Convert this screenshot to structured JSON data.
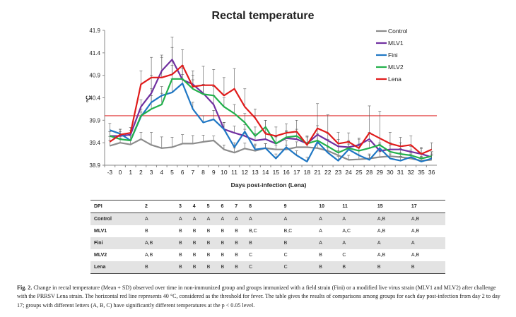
{
  "chart_data": {
    "type": "line",
    "title": "Rectal temperature",
    "xlabel": "Days post-infection (Lena)",
    "ylabel": "°C",
    "ylim": [
      38.9,
      41.9
    ],
    "yticks": [
      "38.9",
      "39.4",
      "39.9",
      "40.4",
      "40.9",
      "41.4",
      "41.9"
    ],
    "x_tick_labels": [
      "-3",
      "0",
      "1",
      "2",
      "3",
      "4",
      "5",
      "6",
      "7",
      "8",
      "9",
      "10",
      "11",
      "12",
      "13",
      "14",
      "15",
      "16",
      "17",
      "18",
      "21",
      "22",
      "23",
      "24",
      "25",
      "28",
      "29",
      "30",
      "31",
      "32",
      "35",
      "36"
    ],
    "threshold": 40.0,
    "series": [
      {
        "name": "Control",
        "color": "#8c8c8c",
        "values": [
          39.33,
          39.4,
          39.36,
          39.48,
          39.35,
          39.28,
          39.3,
          39.38,
          39.38,
          39.42,
          39.45,
          39.25,
          39.18,
          39.27,
          39.22,
          39.28,
          39.25,
          39.25,
          39.3,
          39.3,
          39.28,
          39.22,
          39.12,
          39.02,
          39.03,
          39.05,
          39.08,
          39.1,
          39.08,
          39.05,
          39.0,
          39.02
        ],
        "errors": [
          0.12,
          0.1,
          0.1,
          0.15,
          0.28,
          0.25,
          0.22,
          0.2,
          0.18,
          0.15,
          0.1,
          0.1,
          0.1,
          0.12,
          0.12,
          0.1,
          0.1,
          0.1,
          0.12,
          0.1,
          0.1,
          0.1,
          0.1,
          0.1,
          0.1,
          0.1,
          0.12,
          0.1,
          0.1,
          0.1,
          0.1,
          0.1
        ]
      },
      {
        "name": "MLV1",
        "color": "#7030a0",
        "values": [
          39.55,
          39.55,
          39.58,
          40.2,
          40.5,
          41.0,
          41.25,
          40.8,
          40.7,
          40.5,
          40.25,
          39.7,
          39.62,
          39.55,
          39.45,
          39.48,
          39.38,
          39.5,
          39.48,
          39.38,
          39.58,
          39.45,
          39.32,
          39.3,
          39.35,
          39.48,
          39.22,
          39.25,
          39.25,
          39.2,
          39.15,
          39.08
        ],
        "errors": [
          0.1,
          0.1,
          0.1,
          0.15,
          0.4,
          0.35,
          0.5,
          0.25,
          0.2,
          0.2,
          0.2,
          0.15,
          0.15,
          0.15,
          0.15,
          0.15,
          0.15,
          0.15,
          0.15,
          0.15,
          0.2,
          0.15,
          0.15,
          0.15,
          0.15,
          0.15,
          0.15,
          0.15,
          0.15,
          0.12,
          0.12,
          0.12
        ]
      },
      {
        "name": "Fini",
        "color": "#1f77c4",
        "values": [
          39.68,
          39.6,
          39.45,
          39.98,
          40.3,
          40.45,
          40.52,
          40.72,
          40.15,
          39.85,
          39.92,
          39.7,
          39.3,
          39.65,
          39.25,
          39.28,
          39.05,
          39.3,
          39.12,
          38.98,
          39.42,
          39.18,
          39.0,
          39.25,
          39.12,
          39.02,
          39.28,
          39.05,
          39.0,
          39.08,
          38.98,
          39.05
        ],
        "errors": [
          0.15,
          0.1,
          0.1,
          0.1,
          0.3,
          0.2,
          0.3,
          0.2,
          0.15,
          0.15,
          0.2,
          0.15,
          0.1,
          0.15,
          0.12,
          0.1,
          0.1,
          0.15,
          0.1,
          0.1,
          0.15,
          0.12,
          0.1,
          0.12,
          0.12,
          0.1,
          0.12,
          0.1,
          0.1,
          0.1,
          0.1,
          0.1
        ]
      },
      {
        "name": "MLV2",
        "color": "#22b04b",
        "values": [
          39.55,
          39.48,
          39.45,
          40.0,
          40.15,
          40.25,
          40.82,
          40.82,
          40.6,
          40.48,
          40.45,
          40.2,
          40.05,
          39.85,
          39.55,
          39.75,
          39.38,
          39.52,
          39.55,
          39.38,
          39.45,
          39.32,
          39.18,
          39.28,
          39.22,
          39.28,
          39.35,
          39.2,
          39.15,
          39.12,
          39.05,
          39.1
        ],
        "errors": [
          0.1,
          0.1,
          0.1,
          0.15,
          0.3,
          0.25,
          0.3,
          0.3,
          0.2,
          0.2,
          0.2,
          0.2,
          0.2,
          0.2,
          0.2,
          0.15,
          0.15,
          0.15,
          0.15,
          0.15,
          0.15,
          0.15,
          0.15,
          0.15,
          0.15,
          0.15,
          0.15,
          0.15,
          0.12,
          0.12,
          0.12,
          0.1
        ]
      },
      {
        "name": "Lena",
        "color": "#e01b1b",
        "values": [
          39.42,
          39.58,
          39.62,
          40.7,
          40.85,
          40.85,
          40.92,
          41.12,
          40.65,
          40.68,
          40.68,
          40.45,
          40.6,
          40.2,
          39.95,
          39.6,
          39.55,
          39.62,
          39.65,
          39.35,
          39.72,
          39.62,
          39.38,
          39.42,
          39.28,
          39.62,
          39.5,
          39.38,
          39.32,
          39.35,
          39.15,
          39.25
        ],
        "errors": [
          0.12,
          0.12,
          0.12,
          0.3,
          0.45,
          0.45,
          0.6,
          0.35,
          0.35,
          0.42,
          0.35,
          0.4,
          0.45,
          0.4,
          0.2,
          0.3,
          0.2,
          0.2,
          0.25,
          0.2,
          0.55,
          0.4,
          0.25,
          0.2,
          0.2,
          0.6,
          0.6,
          0.25,
          0.2,
          0.2,
          0.15,
          0.15
        ]
      }
    ]
  },
  "table": {
    "headers": [
      "DPI",
      "2",
      "3",
      "4",
      "5",
      "6",
      "7",
      "8",
      "9",
      "10",
      "11",
      "15",
      "17"
    ],
    "rows": [
      {
        "group": "Control",
        "cells": [
          "A",
          "A",
          "A",
          "A",
          "A",
          "A",
          "A",
          "A",
          "A",
          "A",
          "A,B",
          "A,B"
        ]
      },
      {
        "group": "MLV1",
        "cells": [
          "B",
          "B",
          "B",
          "B",
          "B",
          "B",
          "B,C",
          "B,C",
          "A",
          "A,C",
          "A,B",
          "A,B"
        ]
      },
      {
        "group": "Fini",
        "cells": [
          "A,B",
          "B",
          "B",
          "B",
          "B",
          "B",
          "B",
          "B",
          "A",
          "A",
          "A",
          "A"
        ]
      },
      {
        "group": "MLV2",
        "cells": [
          "A,B",
          "B",
          "B",
          "B",
          "B",
          "B",
          "C",
          "C",
          "B",
          "C",
          "A,B",
          "A,B"
        ]
      },
      {
        "group": "Lena",
        "cells": [
          "B",
          "B",
          "B",
          "B",
          "B",
          "B",
          "C",
          "C",
          "B",
          "B",
          "B",
          "B"
        ]
      }
    ]
  },
  "caption": {
    "label": "Fig. 2.",
    "text": "Change in rectal temperature (Mean + SD) observed over time in non-immunized group and groups immunized with a field strain (Fini) or a modified live virus strain (MLV1 and MLV2) after challenge with the PRRSV Lena strain. The horizontal red line represents 40 °C, considered as the threshold for fever. The table gives the results of comparisons among groups for each day post-infection from day 2 to day 17; groups with different letters (A, B, C) have significantly different temperatures at the p < 0.05 level."
  }
}
